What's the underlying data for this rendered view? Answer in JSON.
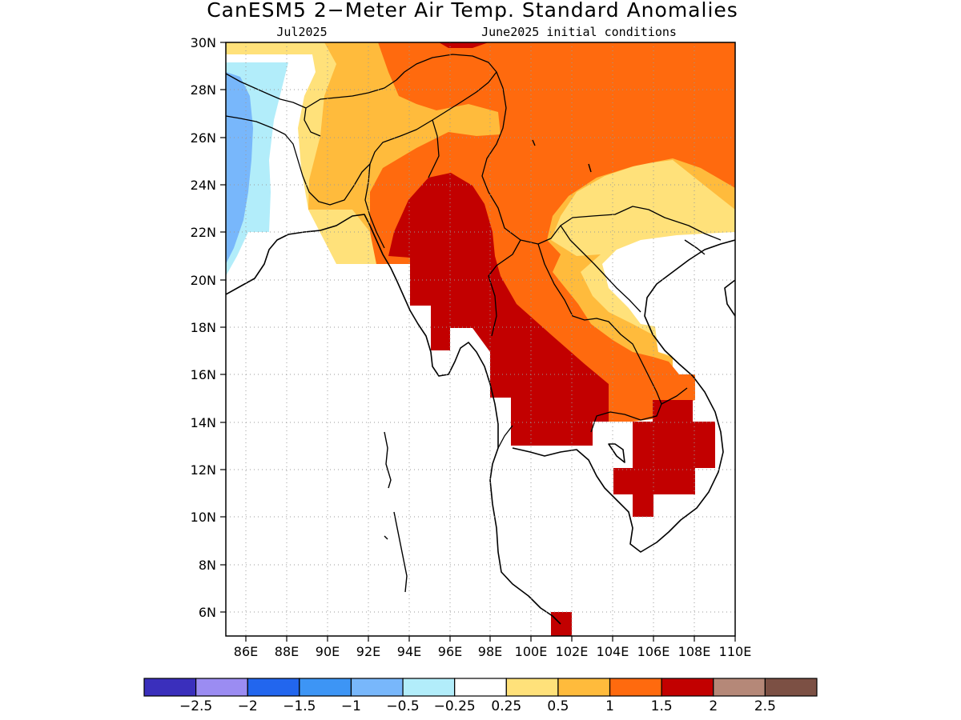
{
  "title": "CanESM5 2−Meter Air Temp. Standard Anomalies",
  "subtitle_left": "Jul2025",
  "subtitle_right": "June2025 initial conditions",
  "map": {
    "lon_range": [
      85,
      110
    ],
    "lat_range": [
      5,
      30
    ],
    "x_ticks": [
      "86E",
      "88E",
      "90E",
      "92E",
      "94E",
      "96E",
      "98E",
      "100E",
      "102E",
      "104E",
      "106E",
      "108E",
      "110E"
    ],
    "y_ticks": [
      "30N",
      "28N",
      "26N",
      "24N",
      "22N",
      "20N",
      "18N",
      "16N",
      "14N",
      "12N",
      "10N",
      "8N",
      "6N"
    ],
    "grid": "dotted"
  },
  "colorbar": {
    "colors": [
      "#3a2fbc",
      "#9b8cf2",
      "#2266ee",
      "#3d95f5",
      "#78b7fb",
      "#b2edfa",
      "#ffffff",
      "#ffe17a",
      "#ffbb3c",
      "#ff6a0e",
      "#c20000",
      "#b58878",
      "#7c5044"
    ],
    "labels": [
      "−2.5",
      "−2",
      "−1.5",
      "−1",
      "−0.5",
      "−0.25",
      "0.25",
      "0.5",
      "1",
      "1.5",
      "2",
      "2.5"
    ]
  },
  "icons": [
    "coastline-outline",
    "border-outline"
  ]
}
